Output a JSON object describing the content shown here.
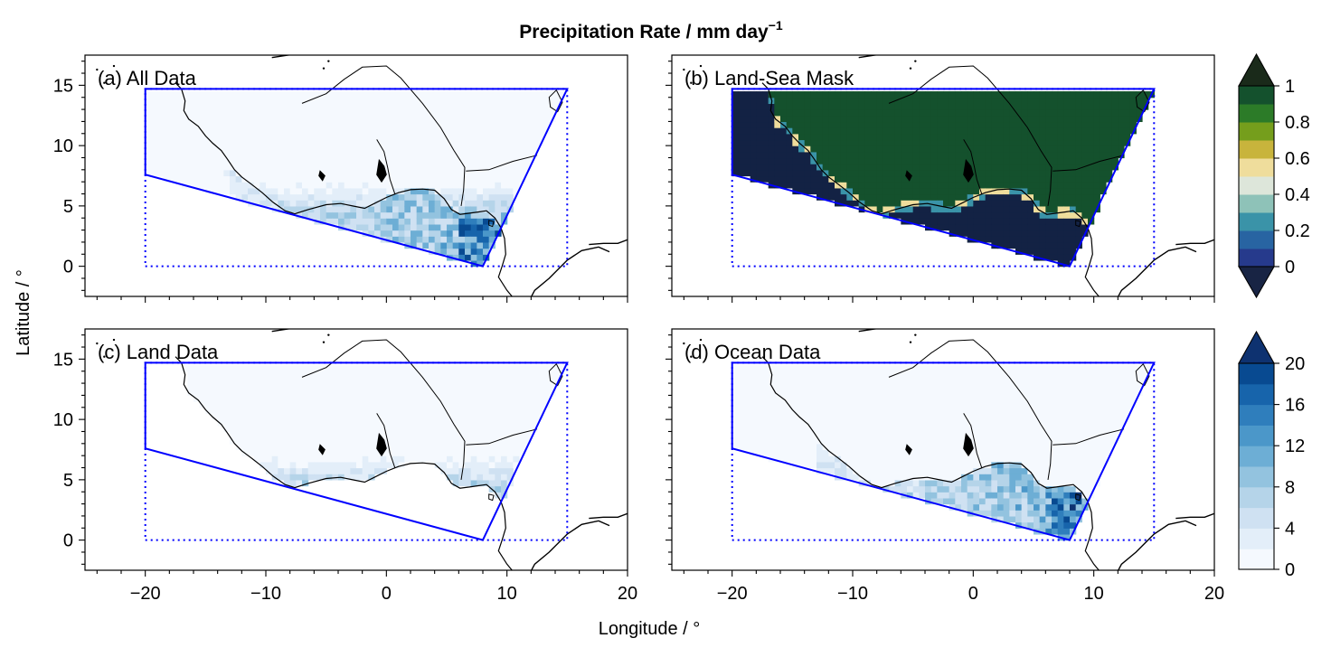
{
  "figure": {
    "title": "Precipitation Rate / mm day",
    "title_superscript": "−1",
    "xlabel": "Longitude / °",
    "ylabel": "Latitude / °"
  },
  "chart_data": {
    "type": "heatmap",
    "xlim": [
      -25,
      20
    ],
    "ylim": [
      -2.5,
      17.5
    ],
    "xticks": [
      -20,
      -10,
      0,
      10,
      20
    ],
    "xtick_labels": [
      "−20",
      "−10",
      "0",
      "10",
      "20"
    ],
    "yticks": [
      0,
      5,
      10,
      15
    ],
    "ytick_labels": [
      "0",
      "5",
      "10",
      "15"
    ],
    "grid": false,
    "colors": {
      "region_box": "#0000ff",
      "coastline": "#000000",
      "land_mask": "#14512d",
      "ocean_mask": "#132244",
      "precip_low": "#f5f9fe",
      "precip_high": "#08306b"
    },
    "region_polygon": [
      [
        -20,
        14.7
      ],
      [
        15,
        14.7
      ],
      [
        8,
        0
      ],
      [
        -20,
        7.6
      ]
    ],
    "bounding_box": [
      [
        -20,
        0
      ],
      [
        15,
        0
      ],
      [
        15,
        14.7
      ],
      [
        -20,
        14.7
      ]
    ],
    "panels": [
      {
        "label": "(a) All Data",
        "field": "all"
      },
      {
        "label": "(b) Land-Sea Mask",
        "field": "mask"
      },
      {
        "label": "(c) Land Data",
        "field": "land"
      },
      {
        "label": "(d) Ocean Data",
        "field": "ocean"
      }
    ],
    "colorbars": [
      {
        "name": "land-sea-mask",
        "range": [
          0,
          1
        ],
        "extend": "both",
        "ticks": [
          0,
          0.2,
          0.4,
          0.6,
          0.8,
          1
        ],
        "tick_labels": [
          "0",
          "0.2",
          "0.4",
          "0.6",
          "0.8",
          "1"
        ],
        "under_color": "#182444",
        "over_color": "#1a2a1a",
        "colors": [
          "#263a8c",
          "#2864a2",
          "#3a93a8",
          "#8ec2b8",
          "#dde6da",
          "#efdd9c",
          "#c8b43c",
          "#759e1c",
          "#2c7b28",
          "#14512d"
        ]
      },
      {
        "name": "precipitation",
        "range": [
          0,
          20
        ],
        "extend": "max",
        "ticks": [
          0,
          4,
          8,
          12,
          16,
          20
        ],
        "tick_labels": [
          "0",
          "4",
          "8",
          "12",
          "16",
          "20"
        ],
        "over_color": "#0e3270",
        "colors": [
          "#f5f9fe",
          "#e3eef9",
          "#cfe1f2",
          "#b5d4e9",
          "#93c3df",
          "#6daed5",
          "#4b97c9",
          "#2f7ebc",
          "#1764ab",
          "#084a91"
        ]
      }
    ]
  }
}
